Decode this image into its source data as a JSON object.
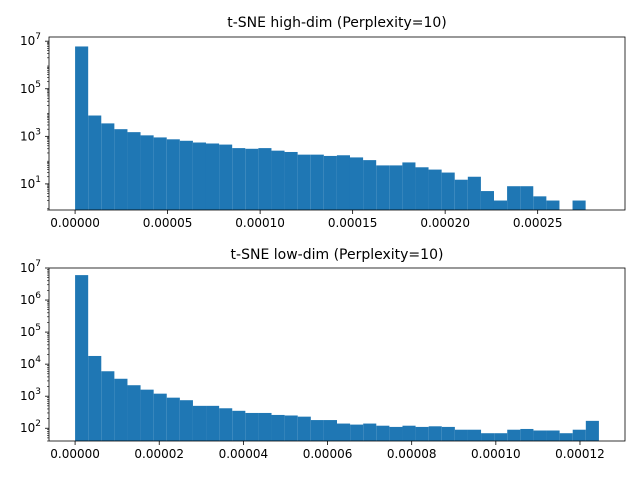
{
  "chart_data": [
    {
      "type": "bar",
      "title": "t-SNE high-dim (Perplexity=10)",
      "xlabel": "",
      "ylabel": "",
      "yscale": "log",
      "grid": false,
      "color": "#1f77b4",
      "x_range": [
        0,
        0.000283
      ],
      "xlim": [
        -1.41e-05,
        0.0002972
      ],
      "ylim": [
        0.8,
        15000000
      ],
      "xticks": [
        {
          "value": 0.0,
          "label": "0.00000"
        },
        {
          "value": 5e-05,
          "label": "0.00005"
        },
        {
          "value": 0.0001,
          "label": "0.00010"
        },
        {
          "value": 0.00015,
          "label": "0.00015"
        },
        {
          "value": 0.0002,
          "label": "0.00020"
        },
        {
          "value": 0.00025,
          "label": "0.00025"
        }
      ],
      "yticks": [
        {
          "value": 10,
          "base": "10",
          "exp": "1"
        },
        {
          "value": 1000,
          "base": "10",
          "exp": "3"
        },
        {
          "value": 100000,
          "base": "10",
          "exp": "5"
        },
        {
          "value": 10000000,
          "base": "10",
          "exp": "7"
        }
      ],
      "values": [
        6000000,
        7500,
        3500,
        2000,
        1500,
        1100,
        900,
        750,
        650,
        550,
        500,
        450,
        320,
        300,
        320,
        250,
        220,
        170,
        170,
        150,
        160,
        130,
        100,
        60,
        60,
        80,
        50,
        40,
        30,
        15,
        20,
        5,
        2,
        8,
        8,
        3,
        2,
        0,
        2,
        0
      ]
    },
    {
      "type": "bar",
      "title": "t-SNE low-dim (Perplexity=10)",
      "xlabel": "",
      "ylabel": "",
      "yscale": "log",
      "grid": false,
      "color": "#1f77b4",
      "x_range": [
        0,
        0.0001245
      ],
      "xlim": [
        -6.2e-06,
        0.0001307
      ],
      "ylim": [
        40,
        10000000
      ],
      "xticks": [
        {
          "value": 0.0,
          "label": "0.00000"
        },
        {
          "value": 2e-05,
          "label": "0.00002"
        },
        {
          "value": 4e-05,
          "label": "0.00004"
        },
        {
          "value": 6e-05,
          "label": "0.00006"
        },
        {
          "value": 8e-05,
          "label": "0.00008"
        },
        {
          "value": 0.0001,
          "label": "0.00010"
        },
        {
          "value": 0.00012,
          "label": "0.00012"
        }
      ],
      "yticks": [
        {
          "value": 100,
          "base": "10",
          "exp": "2"
        },
        {
          "value": 1000,
          "base": "10",
          "exp": "3"
        },
        {
          "value": 10000,
          "base": "10",
          "exp": "4"
        },
        {
          "value": 100000,
          "base": "10",
          "exp": "5"
        },
        {
          "value": 1000000,
          "base": "10",
          "exp": "6"
        },
        {
          "value": 10000000,
          "base": "10",
          "exp": "7"
        }
      ],
      "values": [
        6000000,
        18000,
        6000,
        3500,
        2200,
        1600,
        1200,
        900,
        750,
        500,
        500,
        420,
        350,
        300,
        300,
        260,
        250,
        230,
        180,
        180,
        140,
        130,
        140,
        120,
        110,
        120,
        110,
        115,
        110,
        90,
        90,
        70,
        70,
        90,
        95,
        85,
        85,
        70,
        90,
        170
      ]
    }
  ]
}
